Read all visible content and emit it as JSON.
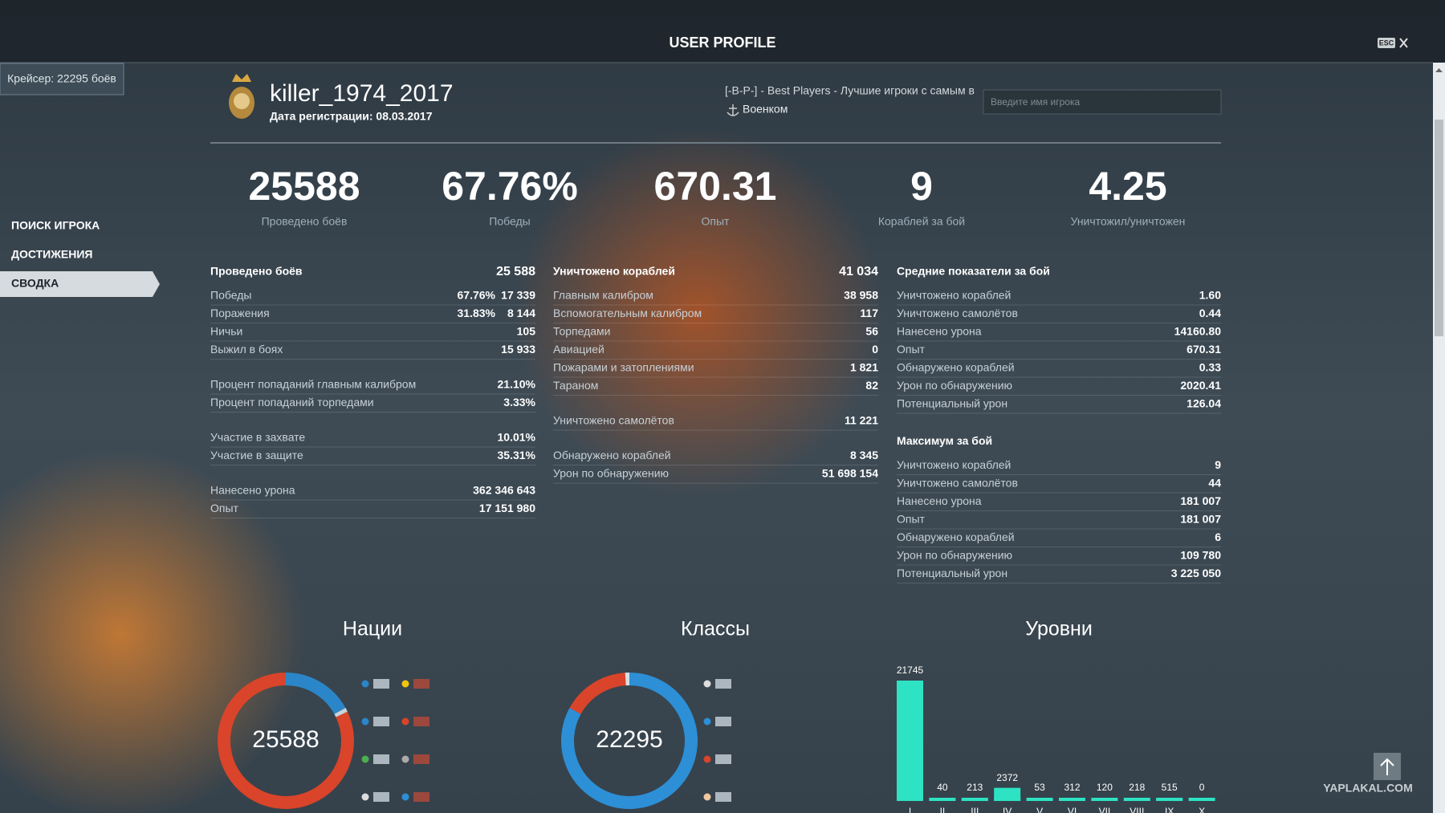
{
  "header": {
    "title": "USER PROFILE",
    "close": "ESC"
  },
  "side_tag": "Крейсер: 22295 боёв",
  "menu": [
    "ПОИСК ИГРОКА",
    "ДОСТИЖЕНИЯ",
    "СВОДКА"
  ],
  "player": {
    "name": "killer_1974_2017",
    "registered": "Дата регистрации: 08.03.2017",
    "clan": "[-B-P-] - Best Players - Лучшие игроки с самым в",
    "clan_role": "Военком"
  },
  "search_placeholder": "Введите имя игрока",
  "summary": [
    {
      "value": "25588",
      "label": "Проведено боёв"
    },
    {
      "value": "67.76%",
      "label": "Победы"
    },
    {
      "value": "670.31",
      "label": "Опыт"
    },
    {
      "value": "9",
      "label": "Кораблей за бой"
    },
    {
      "value": "4.25",
      "label": "Уничтожил/уничтожен"
    }
  ],
  "columns": [
    [
      {
        "title": "Проведено боёв",
        "total": "25 588",
        "rows": [
          [
            "Победы",
            "67.76%",
            "17 339"
          ],
          [
            "Поражения",
            "31.83%",
            "8 144"
          ],
          [
            "Ничьи",
            "105"
          ],
          [
            "Выжил в боях",
            "15 933"
          ]
        ]
      },
      {
        "rows": [
          [
            "Процент попаданий главным калибром",
            "21.10%"
          ],
          [
            "Процент попаданий торпедами",
            "3.33%"
          ]
        ]
      },
      {
        "rows": [
          [
            "Участие в захвате",
            "10.01%"
          ],
          [
            "Участие в защите",
            "35.31%"
          ]
        ]
      },
      {
        "rows": [
          [
            "Нанесено урона",
            "362 346 643"
          ],
          [
            "Опыт",
            "17 151 980"
          ]
        ]
      }
    ],
    [
      {
        "title": "Уничтожено кораблей",
        "total": "41 034",
        "rows": [
          [
            "Главным калибром",
            "38 958"
          ],
          [
            "Вспомогательным калибром",
            "117"
          ],
          [
            "Торпедами",
            "56"
          ],
          [
            "Авиацией",
            "0"
          ],
          [
            "Пожарами и затоплениями",
            "1 821"
          ],
          [
            "Тараном",
            "82"
          ]
        ]
      },
      {
        "rows": [
          [
            "Уничтожено самолётов",
            "11 221"
          ]
        ]
      },
      {
        "rows": [
          [
            "Обнаружено кораблей",
            "8 345"
          ],
          [
            "Урон по обнаружению",
            "51 698 154"
          ]
        ]
      }
    ],
    [
      {
        "title": "Средние показатели за бой",
        "rows": [
          [
            "Уничтожено кораблей",
            "1.60"
          ],
          [
            "Уничтожено самолётов",
            "0.44"
          ],
          [
            "Нанесено урона",
            "14160.80"
          ],
          [
            "Опыт",
            "670.31"
          ],
          [
            "Обнаружено кораблей",
            "0.33"
          ],
          [
            "Урон по обнаружению",
            "2020.41"
          ],
          [
            "Потенциальный урон",
            "126.04"
          ]
        ]
      },
      {
        "title": "Максимум за бой",
        "rows": [
          [
            "Уничтожено кораблей",
            "9"
          ],
          [
            "Уничтожено самолётов",
            "44"
          ],
          [
            "Нанесено урона",
            "181 007"
          ],
          [
            "Опыт",
            "181 007"
          ],
          [
            "Обнаружено кораблей",
            "6"
          ],
          [
            "Урон по обнаружению",
            "109 780"
          ],
          [
            "Потенциальный урон",
            "3 225 050"
          ]
        ]
      }
    ]
  ],
  "charts": [
    {
      "type": "donut",
      "title": "Нации",
      "center": "25588",
      "segments": [
        {
          "color": "#2a86c8",
          "value": 17
        },
        {
          "color": "#c9d3d9",
          "value": 1
        },
        {
          "color": "#d9442a",
          "value": 82
        }
      ]
    },
    {
      "type": "donut",
      "title": "Классы",
      "center": "22295",
      "segments": [
        {
          "color": "#2d8fd6",
          "value": 83
        },
        {
          "color": "#d9442a",
          "value": 16
        },
        {
          "color": "#d7dde1",
          "value": 1
        }
      ]
    },
    {
      "type": "bar",
      "title": "Уровни",
      "categories": [
        "I",
        "II",
        "III",
        "IV",
        "V",
        "VI",
        "VII",
        "VIII",
        "IX",
        "X"
      ],
      "values": [
        21745,
        40,
        213,
        2372,
        53,
        312,
        120,
        218,
        515,
        0
      ],
      "color": "#2de3c4"
    }
  ],
  "watermark": "YAPLAKAL.COM"
}
